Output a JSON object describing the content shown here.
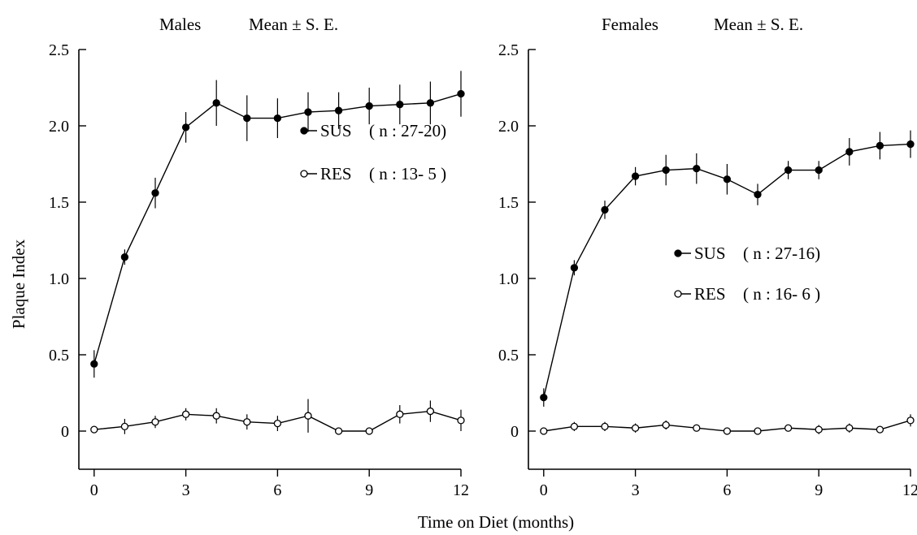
{
  "figure": {
    "ylabel": "Plaque Index",
    "xlabel": "Time on Diet (months)"
  },
  "chart_data": [
    {
      "type": "line",
      "title": "Males",
      "subtitle": "Mean ± S. E.",
      "xlabel": "Time on Diet (months)",
      "ylabel": "Plaque Index",
      "xlim": [
        -0.5,
        12
      ],
      "ylim": [
        -0.25,
        2.5
      ],
      "xticks": [
        0,
        3,
        6,
        9,
        12
      ],
      "yticks": [
        0,
        0.5,
        1.0,
        1.5,
        2.0,
        2.5
      ],
      "ytick_labels": [
        "0",
        "0.5",
        "1.0",
        "1.5",
        "2.0",
        "2.5"
      ],
      "legend_position": "upper-middle",
      "x": [
        0,
        1,
        2,
        3,
        4,
        5,
        6,
        7,
        8,
        9,
        10,
        11,
        12
      ],
      "series": [
        {
          "name": "SUS",
          "legend_label": "SUS",
          "legend_n": "( n : 27-20)",
          "marker": "filled-circle",
          "values": [
            0.44,
            1.14,
            1.56,
            1.99,
            2.15,
            2.05,
            2.05,
            2.09,
            2.1,
            2.13,
            2.14,
            2.15,
            2.21
          ],
          "errors": [
            0.09,
            0.05,
            0.1,
            0.1,
            0.15,
            0.15,
            0.13,
            0.13,
            0.12,
            0.12,
            0.13,
            0.14,
            0.15
          ]
        },
        {
          "name": "RES",
          "legend_label": "RES",
          "legend_n": "( n : 13- 5 )",
          "marker": "open-circle",
          "values": [
            0.01,
            0.03,
            0.06,
            0.11,
            0.1,
            0.06,
            0.05,
            0.1,
            0.0,
            0.0,
            0.11,
            0.13,
            0.07
          ],
          "errors": [
            0.01,
            0.05,
            0.04,
            0.04,
            0.05,
            0.05,
            0.05,
            0.11,
            0.01,
            0.01,
            0.06,
            0.07,
            0.07
          ]
        }
      ]
    },
    {
      "type": "line",
      "title": "Females",
      "subtitle": "Mean ± S. E.",
      "xlabel": "Time on Diet (months)",
      "ylabel": "Plaque Index",
      "xlim": [
        -0.5,
        12
      ],
      "ylim": [
        -0.25,
        2.5
      ],
      "xticks": [
        0,
        3,
        6,
        9,
        12
      ],
      "yticks": [
        0,
        0.5,
        1.0,
        1.5,
        2.0,
        2.5
      ],
      "ytick_labels": [
        "0",
        "0.5",
        "1.0",
        "1.5",
        "2.0",
        "2.5"
      ],
      "legend_position": "center-right",
      "x": [
        0,
        1,
        2,
        3,
        4,
        5,
        6,
        7,
        8,
        9,
        10,
        11,
        12
      ],
      "series": [
        {
          "name": "SUS",
          "legend_label": "SUS",
          "legend_n": "( n : 27-16)",
          "marker": "filled-circle",
          "values": [
            0.22,
            1.07,
            1.45,
            1.67,
            1.71,
            1.72,
            1.65,
            1.55,
            1.71,
            1.71,
            1.83,
            1.87,
            1.88
          ],
          "errors": [
            0.06,
            0.05,
            0.06,
            0.06,
            0.1,
            0.1,
            0.1,
            0.07,
            0.06,
            0.06,
            0.09,
            0.09,
            0.09
          ]
        },
        {
          "name": "RES",
          "legend_label": "RES",
          "legend_n": "( n : 16- 6 )",
          "marker": "open-circle",
          "values": [
            0.0,
            0.03,
            0.03,
            0.02,
            0.04,
            0.02,
            0.0,
            0.0,
            0.02,
            0.01,
            0.02,
            0.01,
            0.07
          ],
          "errors": [
            0.0,
            0.03,
            0.03,
            0.03,
            0.03,
            0.02,
            0.0,
            0.0,
            0.02,
            0.03,
            0.03,
            0.02,
            0.04
          ]
        }
      ]
    }
  ]
}
